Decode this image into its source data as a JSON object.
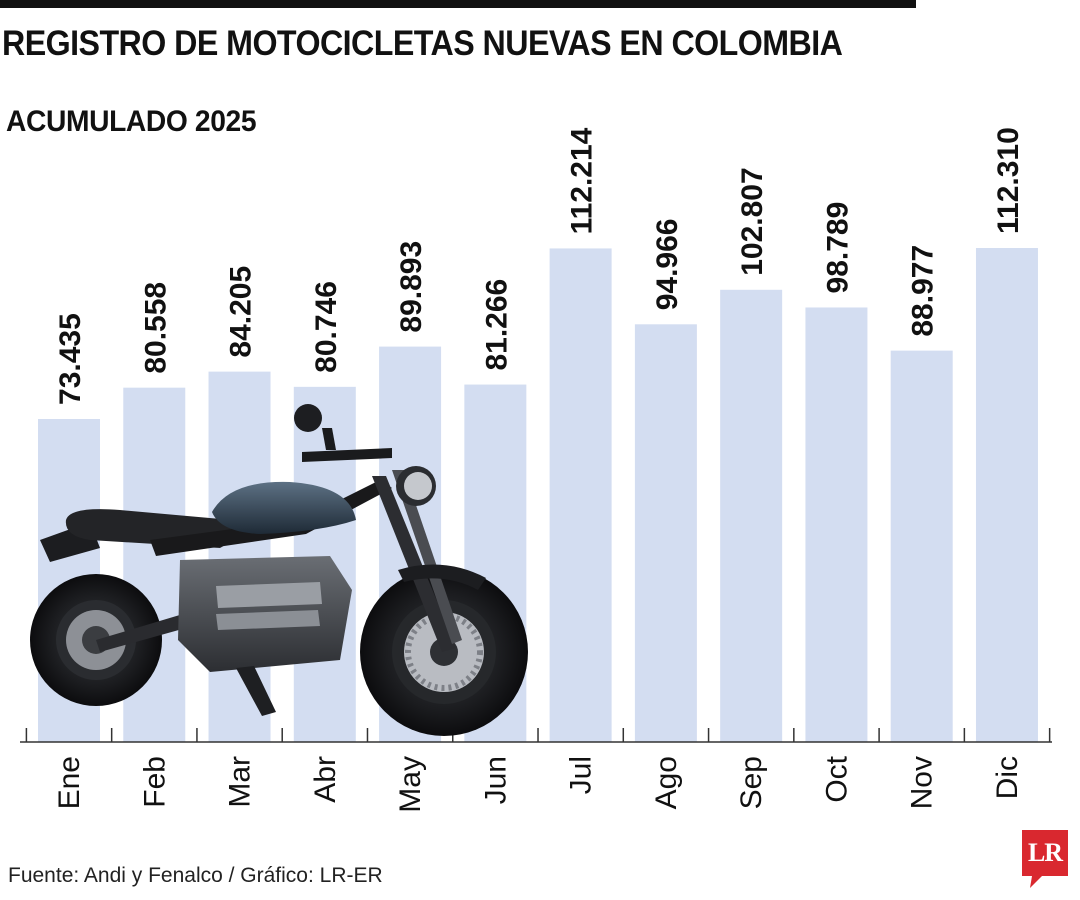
{
  "header": {
    "title": "REGISTRO DE MOTOCICLETAS NUEVAS EN COLOMBIA",
    "subtitle": "ACUMULADO 2025"
  },
  "footer": {
    "source": "Fuente: Andi y Fenalco / Gráfico: LR-ER",
    "logo": "LR"
  },
  "colors": {
    "bar": "#d3ddf1",
    "text": "#111111",
    "logo": "#d9282f"
  },
  "illustration": "motorcycle-photo",
  "chart_data": {
    "type": "bar",
    "categories": [
      "Ene",
      "Feb",
      "Mar",
      "Abr",
      "May",
      "Jun",
      "Jul",
      "Ago",
      "Sep",
      "Oct",
      "Nov",
      "Dic"
    ],
    "values": [
      73435,
      80558,
      84205,
      80746,
      89893,
      81266,
      112214,
      94966,
      102807,
      98789,
      88977,
      112310
    ],
    "value_labels": [
      "73.435",
      "80.558",
      "84.205",
      "80.746",
      "89.893",
      "81.266",
      "112.214",
      "94.966",
      "102.807",
      "98.789",
      "88.977",
      "112.310"
    ],
    "ylim": [
      0,
      112310
    ],
    "grid": false,
    "legend": "none"
  }
}
